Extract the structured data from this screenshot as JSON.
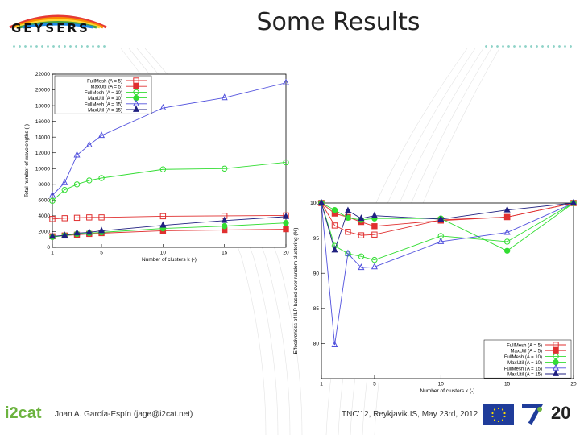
{
  "slide": {
    "title": "Some Results",
    "logo_text": "GEYSERS",
    "author": "Joan A. García-Espín (jage@i2cat.net)",
    "conference": "TNC'12, Reykjavik.IS, May 23rd, 2012",
    "page_number": "20",
    "org_logo": "i2cat",
    "flag_icon": "eu-flag-icon",
    "fp7_icon": "fp7-logo-icon"
  },
  "chart_data": [
    {
      "type": "line",
      "xlabel": "Number of clusters k (-)",
      "ylabel": "Total number of wavelengths (-)",
      "xlim": [
        1,
        20
      ],
      "ylim": [
        0,
        22000
      ],
      "x_ticks": [
        1,
        5,
        10,
        15,
        20
      ],
      "y_ticks": [
        0,
        2000,
        4000,
        6000,
        8000,
        10000,
        12000,
        14000,
        16000,
        18000,
        20000,
        22000
      ],
      "legend_position": "top-left",
      "x": [
        1,
        2,
        3,
        4,
        5,
        10,
        15,
        20
      ],
      "series": [
        {
          "name": "FullMesh (A = 5)",
          "color": "#e03030",
          "marker": "open-square",
          "values": [
            3600,
            3700,
            3750,
            3800,
            3800,
            3950,
            4000,
            4050
          ]
        },
        {
          "name": "MaxUtil (A = 5)",
          "color": "#e03030",
          "marker": "filled-square",
          "values": [
            1400,
            1500,
            1600,
            1700,
            1800,
            2100,
            2200,
            2300
          ]
        },
        {
          "name": "FullMesh (A = 10)",
          "color": "#33dd33",
          "marker": "open-circle",
          "values": [
            5900,
            7300,
            8000,
            8500,
            8800,
            9900,
            10000,
            10800
          ]
        },
        {
          "name": "MaxUtil (A = 10)",
          "color": "#33dd33",
          "marker": "filled-circle",
          "values": [
            1300,
            1500,
            1700,
            1800,
            1900,
            2400,
            2700,
            3100
          ]
        },
        {
          "name": "FullMesh (A = 15)",
          "color": "#5050dd",
          "marker": "open-triangle",
          "values": [
            6600,
            8200,
            11700,
            13000,
            14200,
            17700,
            19000,
            20900
          ]
        },
        {
          "name": "MaxUtil (A = 15)",
          "color": "#202080",
          "marker": "filled-triangle",
          "values": [
            1400,
            1500,
            1800,
            1900,
            2100,
            2800,
            3400,
            3900
          ]
        }
      ]
    },
    {
      "type": "line",
      "xlabel": "Number of clusters k (-)",
      "ylabel": "Effectiveness of ILP-based over random clustering (%)",
      "xlim": [
        1,
        20
      ],
      "ylim": [
        75,
        100
      ],
      "x_ticks": [
        1,
        5,
        10,
        15,
        20
      ],
      "y_ticks": [
        80,
        85,
        90,
        95,
        100
      ],
      "legend_position": "bottom-right",
      "x": [
        1,
        2,
        3,
        4,
        5,
        10,
        15,
        20
      ],
      "series": [
        {
          "name": "FullMesh (A = 5)",
          "color": "#e03030",
          "marker": "open-square",
          "values": [
            100,
            96.8,
            95.9,
            95.4,
            95.5,
            97.6,
            98.0,
            100
          ]
        },
        {
          "name": "MaxUtil (A = 5)",
          "color": "#e03030",
          "marker": "filled-square",
          "values": [
            100,
            98.5,
            98.0,
            97.3,
            96.7,
            97.5,
            98.0,
            100
          ]
        },
        {
          "name": "FullMesh (A = 10)",
          "color": "#33dd33",
          "marker": "open-circle",
          "values": [
            100,
            93.9,
            92.8,
            92.4,
            91.9,
            95.3,
            94.5,
            100
          ]
        },
        {
          "name": "MaxUtil (A = 10)",
          "color": "#33dd33",
          "marker": "filled-circle",
          "values": [
            100,
            99.0,
            97.9,
            97.6,
            97.8,
            97.8,
            93.2,
            100
          ]
        },
        {
          "name": "FullMesh (A = 15)",
          "color": "#5050dd",
          "marker": "open-triangle",
          "values": [
            100,
            79.8,
            92.8,
            90.8,
            90.9,
            94.5,
            95.8,
            100
          ]
        },
        {
          "name": "MaxUtil (A = 15)",
          "color": "#202080",
          "marker": "filled-triangle",
          "values": [
            100,
            93.3,
            98.9,
            97.8,
            98.2,
            97.7,
            99.0,
            100
          ]
        }
      ]
    }
  ]
}
